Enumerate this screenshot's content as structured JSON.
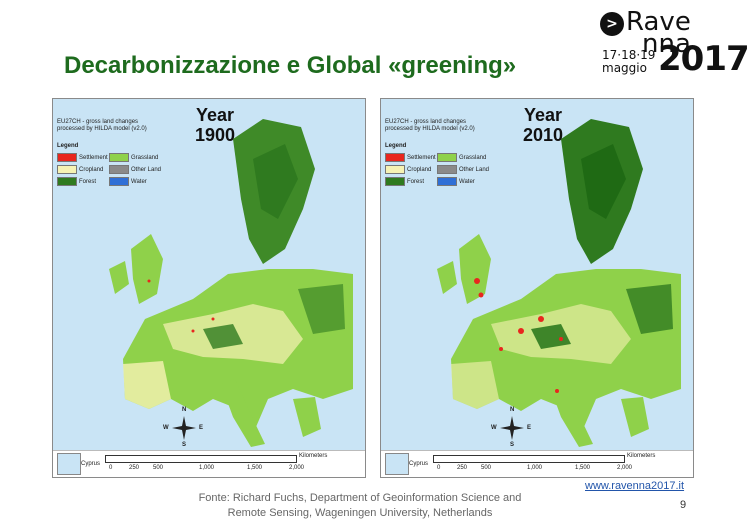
{
  "slide_title": "Decarbonizzazione e Global «greening»",
  "logo": {
    "line1": "Rave",
    "line2": "nna",
    "dates": "17·18·19",
    "month": "maggio",
    "year": "2017"
  },
  "maps": [
    {
      "year_label": "Year",
      "year_value": "1900",
      "info_line1": "EU27CH - gross land changes",
      "info_line2": "processed by HILDA model (v2.0)"
    },
    {
      "year_label": "Year",
      "year_value": "2010",
      "info_line1": "EU27CH - gross land changes",
      "info_line2": "processed by HILDA model (v2.0)"
    }
  ],
  "legend": {
    "title": "Legend",
    "items": [
      {
        "label": "Settlement",
        "color": "#e8261e"
      },
      {
        "label": "Grassland",
        "color": "#8fd14a"
      },
      {
        "label": "Cropland",
        "color": "#f6f2b3"
      },
      {
        "label": "Other Land",
        "color": "#8a8a8a"
      },
      {
        "label": "Forest",
        "color": "#2f7a1f"
      },
      {
        "label": "Water",
        "color": "#2f6fd6"
      }
    ]
  },
  "scale": {
    "inset_label": "Cyprus",
    "ticks": [
      "0",
      "250",
      "500",
      "1,000",
      "1,500",
      "2,000"
    ],
    "unit": "Kilometers"
  },
  "compass": {
    "n": "N",
    "s": "S",
    "e": "E",
    "w": "W"
  },
  "footer": {
    "source_line1": "Fonte: Richard Fuchs, Department of Geoinformation Science and",
    "source_line2": "Remote Sensing, Wageningen University, Netherlands",
    "url": "www.ravenna2017.it",
    "page_number": "9"
  }
}
